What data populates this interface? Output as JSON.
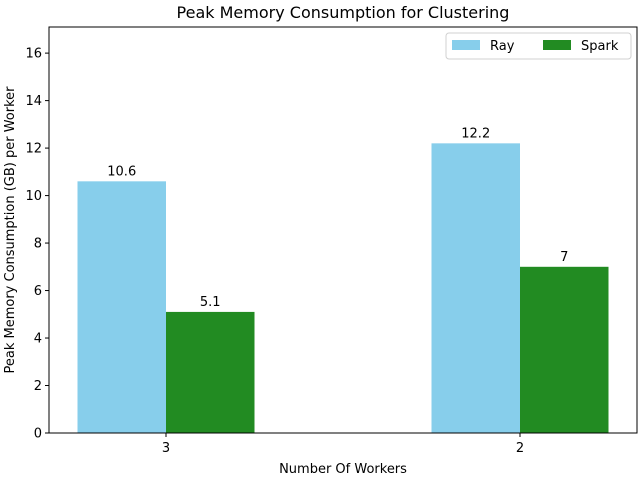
{
  "chart_data": {
    "type": "bar",
    "title": "Peak Memory Consumption for Clustering",
    "xlabel": "Number Of Workers",
    "ylabel": "Peak Memory Consumption (GB) per Worker",
    "categories": [
      "3",
      "2"
    ],
    "series": [
      {
        "name": "Ray",
        "values": [
          10.6,
          12.2
        ],
        "labels": [
          "10.6",
          "12.2"
        ],
        "color": "#87ceeb"
      },
      {
        "name": "Spark",
        "values": [
          5.1,
          7.0
        ],
        "labels": [
          "5.1",
          "7"
        ],
        "color": "#228b22"
      }
    ],
    "ylim": [
      0,
      17.1
    ],
    "yticks": [
      0,
      2,
      4,
      6,
      8,
      10,
      12,
      14,
      16
    ],
    "grid": false,
    "legend_position": "top-right"
  }
}
